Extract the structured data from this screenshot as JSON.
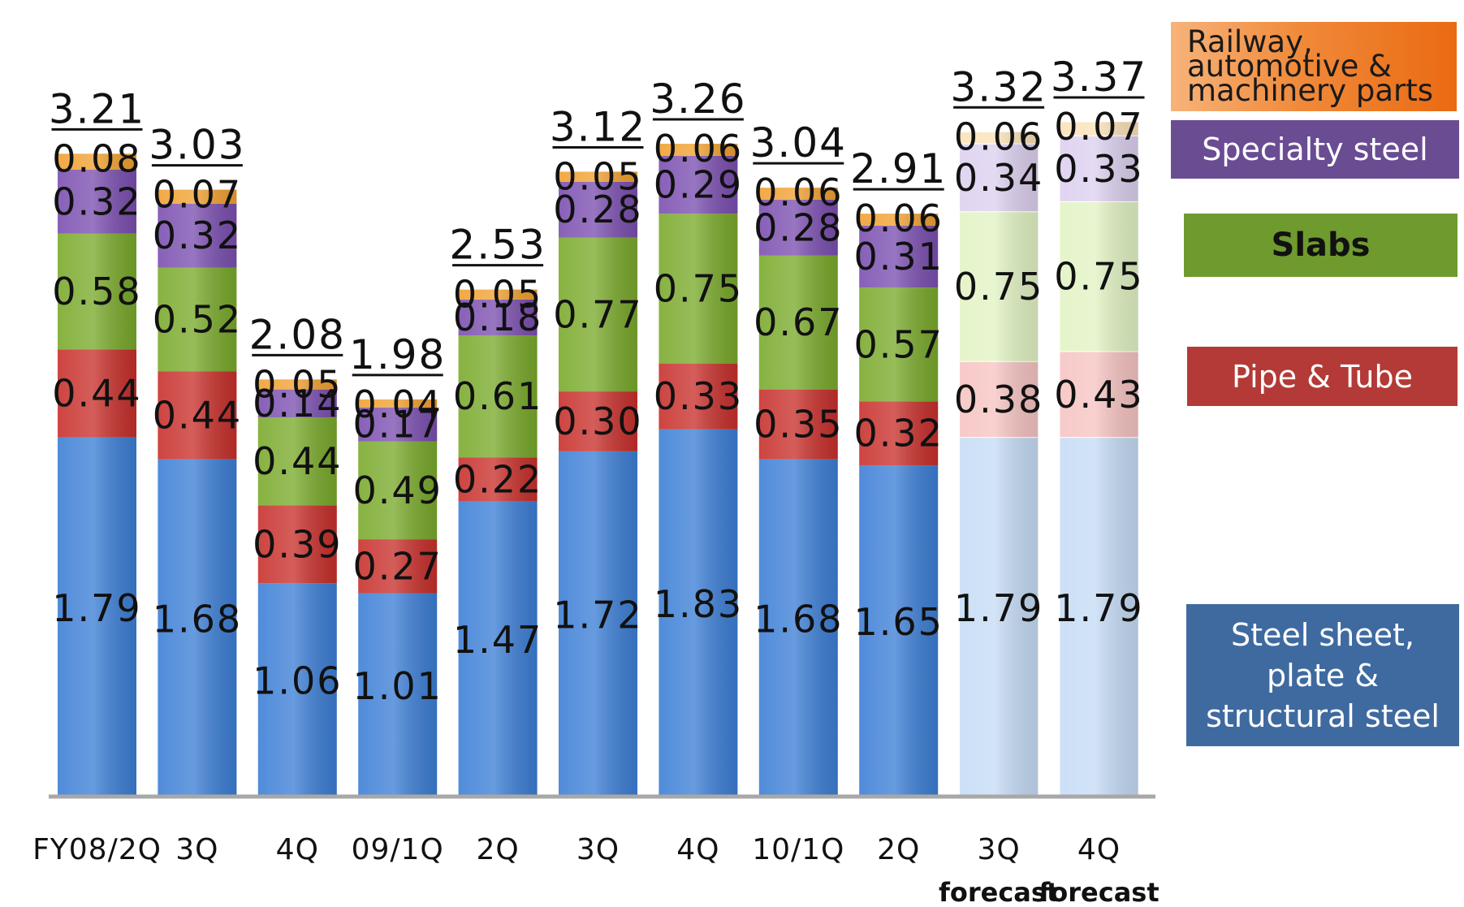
{
  "chart_data": {
    "type": "bar",
    "stacked": true,
    "categories": [
      "FY08/2Q",
      "3Q",
      "4Q",
      "09/1Q",
      "2Q",
      "3Q",
      "4Q",
      "10/1Q",
      "2Q",
      "3Q",
      "4Q"
    ],
    "category_notes": [
      "",
      "",
      "",
      "",
      "",
      "",
      "",
      "",
      "",
      "forecast",
      "forecast"
    ],
    "forecast": [
      false,
      false,
      false,
      false,
      false,
      false,
      false,
      false,
      false,
      true,
      true
    ],
    "series": [
      {
        "name": "Steel sheet, plate & structural steel",
        "color": "#3d7fd6",
        "light_color": "#c6dcf6",
        "values": [
          1.79,
          1.68,
          1.06,
          1.01,
          1.47,
          1.72,
          1.83,
          1.68,
          1.65,
          1.79,
          1.79
        ]
      },
      {
        "name": "Pipe & Tube",
        "color": "#c8302c",
        "light_color": "#f6c4c2",
        "values": [
          0.44,
          0.44,
          0.39,
          0.27,
          0.22,
          0.3,
          0.33,
          0.35,
          0.32,
          0.38,
          0.43
        ]
      },
      {
        "name": "Slabs",
        "color": "#7aaa2c",
        "light_color": "#e2f3c4",
        "values": [
          0.58,
          0.52,
          0.44,
          0.49,
          0.61,
          0.77,
          0.75,
          0.67,
          0.57,
          0.75,
          0.75
        ]
      },
      {
        "name": "Specialty steel",
        "color": "#7b4fb0",
        "light_color": "#ddd0ef",
        "values": [
          0.32,
          0.32,
          0.14,
          0.17,
          0.18,
          0.28,
          0.29,
          0.28,
          0.31,
          0.34,
          0.33
        ]
      },
      {
        "name": "Railway, automotive & machinery parts",
        "color": "#f0a030",
        "light_color": "#fbe2b8",
        "values": [
          0.08,
          0.07,
          0.05,
          0.04,
          0.05,
          0.05,
          0.06,
          0.06,
          0.06,
          0.06,
          0.07
        ]
      }
    ],
    "totals": [
      3.21,
      3.03,
      2.08,
      1.98,
      2.53,
      3.12,
      3.26,
      3.04,
      2.91,
      3.32,
      3.37
    ],
    "value_labels": {
      "bottom": [
        "1.79",
        "1.68",
        "1.06",
        "1.01",
        "1.47",
        "1.72",
        "1.83",
        "1.68",
        "1.65",
        "1.79",
        "1.79"
      ],
      "pipe": [
        "0.44",
        "0.44",
        "0.39",
        "0.27",
        "0.22",
        "0.30",
        "0.33",
        "0.35",
        "0.32",
        "0.38",
        "0.43"
      ],
      "slabs": [
        "0.58",
        "0.52",
        "0.44",
        "0.49",
        "0.61",
        "0.77",
        "0.75",
        "0.67",
        "0.57",
        "0.75",
        "0.75"
      ],
      "specialty": [
        "0.32",
        "0.32",
        "0.14",
        "0.17",
        "0.18",
        "0.28",
        "0.29",
        "0.28",
        "0.31",
        "0.34",
        "0.33"
      ],
      "railway": [
        "0.08",
        "0.07",
        "0.05",
        "0.04",
        "0.05",
        "0.05",
        "0.06",
        "0.06",
        "0.06",
        "0.06",
        "0.07"
      ],
      "totals": [
        "3.21",
        "3.03",
        "2.08",
        "1.98",
        "2.53",
        "3.12",
        "3.26",
        "3.04",
        "2.91",
        "3.32",
        "3.37"
      ]
    },
    "ylim": [
      0,
      4.0
    ],
    "grid": false,
    "legend_position": "right"
  },
  "legend": {
    "railway": "Railway, automotive & machinery parts",
    "railway_lines": [
      "Railway,",
      "automotive &",
      "machinery parts"
    ],
    "specialty": "Specialty steel",
    "slabs": "Slabs",
    "pipe": "Pipe & Tube",
    "steel": "Steel sheet, plate & structural steel",
    "steel_lines": [
      "Steel sheet,",
      "plate &",
      "structural steel"
    ]
  }
}
